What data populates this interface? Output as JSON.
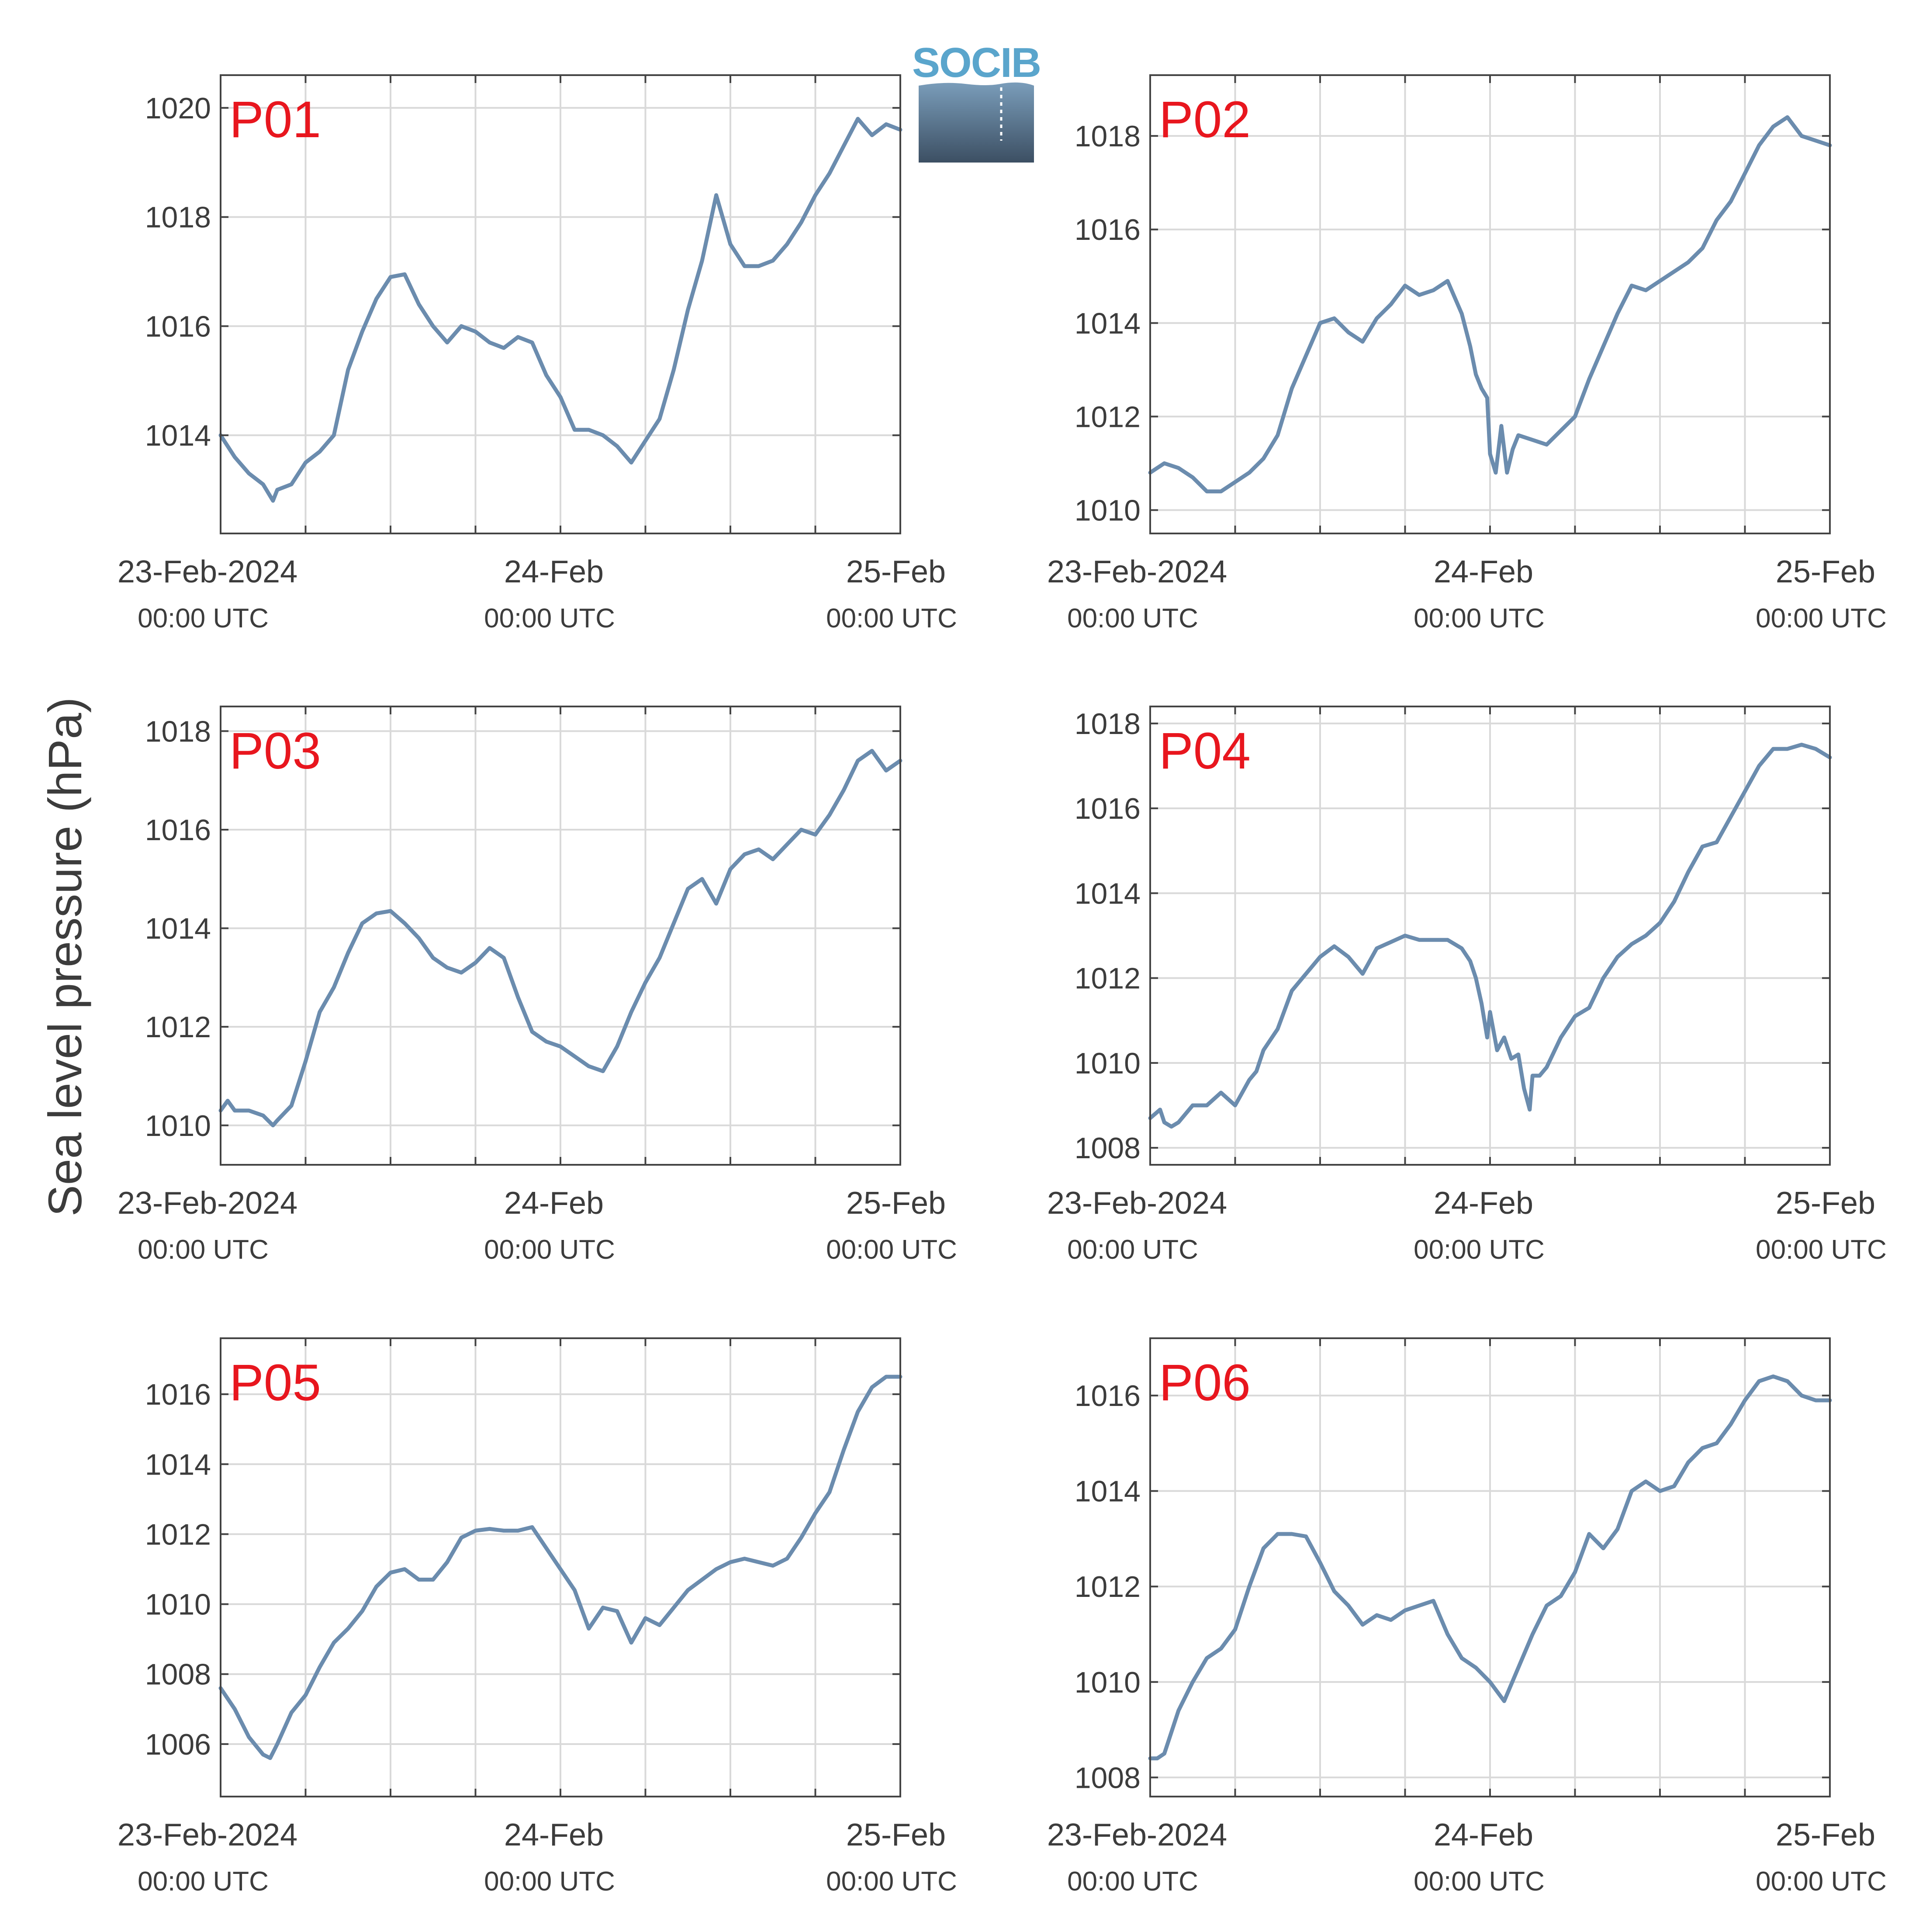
{
  "figure": {
    "ylabel": "Sea level pressure (hPa)",
    "logo_text": "SOCIB",
    "colors": {
      "line": "#6b8cae",
      "panel_label": "#e8161e",
      "grid": "#d9d9d9",
      "axis": "#444444",
      "text": "#3c3c3c",
      "logo_top": "#7a9dba",
      "logo_bottom": "#3c4f63",
      "logo_text": "#5aa5cc"
    }
  },
  "x_ticks": [
    {
      "x": 0,
      "line1": "23-Feb-2024",
      "line2": "00:00 UTC"
    },
    {
      "x": 24,
      "line1": "24-Feb",
      "line2": "00:00 UTC"
    },
    {
      "x": 48,
      "line1": "25-Feb",
      "line2": "00:00 UTC"
    }
  ],
  "chart_data": [
    {
      "type": "line",
      "title": "P01",
      "x_unit": "hours since 23-Feb-2024 00:00 UTC",
      "xlim": [
        0,
        48
      ],
      "ylim": [
        1012.2,
        1020.6
      ],
      "yticks": [
        1014,
        1016,
        1018,
        1020
      ],
      "x": [
        0,
        1,
        2,
        3,
        3.7,
        4,
        5,
        6,
        7,
        8,
        9,
        10,
        11,
        12,
        13,
        14,
        15,
        16,
        17,
        18,
        19,
        20,
        21,
        22,
        23,
        24,
        25,
        26,
        27,
        28,
        29,
        30,
        31,
        32,
        33,
        34,
        35,
        36,
        37,
        38,
        39,
        40,
        41,
        42,
        43,
        44,
        45,
        46,
        47,
        48
      ],
      "y": [
        1014.0,
        1013.6,
        1013.3,
        1013.1,
        1012.8,
        1013.0,
        1013.1,
        1013.5,
        1013.7,
        1014.0,
        1015.2,
        1015.9,
        1016.5,
        1016.9,
        1016.95,
        1016.4,
        1016.0,
        1015.7,
        1016.0,
        1015.9,
        1015.7,
        1015.6,
        1015.8,
        1015.7,
        1015.1,
        1014.7,
        1014.1,
        1014.1,
        1014.0,
        1013.8,
        1013.5,
        1013.9,
        1014.3,
        1015.2,
        1016.3,
        1017.2,
        1018.4,
        1017.5,
        1017.1,
        1017.1,
        1017.2,
        1017.5,
        1017.9,
        1018.4,
        1018.8,
        1019.3,
        1019.8,
        1019.5,
        1019.7,
        1019.6
      ]
    },
    {
      "type": "line",
      "title": "P02",
      "x_unit": "hours since 23-Feb-2024 00:00 UTC",
      "xlim": [
        0,
        48
      ],
      "ylim": [
        1009.5,
        1019.3
      ],
      "yticks": [
        1010,
        1012,
        1014,
        1016,
        1018
      ],
      "x": [
        0,
        1,
        2,
        3,
        4,
        5,
        6,
        7,
        8,
        9,
        10,
        11,
        12,
        13,
        14,
        15,
        16,
        17,
        18,
        19,
        20,
        21,
        22,
        22.6,
        23,
        23.4,
        23.8,
        24,
        24.4,
        24.8,
        25.2,
        25.6,
        26,
        27,
        28,
        29,
        30,
        31,
        32,
        33,
        34,
        35,
        36,
        37,
        38,
        39,
        40,
        41,
        42,
        43,
        44,
        45,
        46,
        47,
        48
      ],
      "y": [
        1010.8,
        1011.0,
        1010.9,
        1010.7,
        1010.4,
        1010.4,
        1010.6,
        1010.8,
        1011.1,
        1011.6,
        1012.6,
        1013.3,
        1014.0,
        1014.1,
        1013.8,
        1013.6,
        1014.1,
        1014.4,
        1014.8,
        1014.6,
        1014.7,
        1014.9,
        1014.2,
        1013.5,
        1012.9,
        1012.6,
        1012.4,
        1011.2,
        1010.8,
        1011.8,
        1010.8,
        1011.3,
        1011.6,
        1011.5,
        1011.4,
        1011.7,
        1012.0,
        1012.8,
        1013.5,
        1014.2,
        1014.8,
        1014.7,
        1014.9,
        1015.1,
        1015.3,
        1015.6,
        1016.2,
        1016.6,
        1017.2,
        1017.8,
        1018.2,
        1018.4,
        1018.0,
        1017.9,
        1017.8
      ]
    },
    {
      "type": "line",
      "title": "P03",
      "x_unit": "hours since 23-Feb-2024 00:00 UTC",
      "xlim": [
        0,
        48
      ],
      "ylim": [
        1009.2,
        1018.5
      ],
      "yticks": [
        1010,
        1012,
        1014,
        1016,
        1018
      ],
      "x": [
        0,
        0.5,
        1,
        2,
        3,
        3.7,
        4,
        5,
        6,
        7,
        8,
        9,
        10,
        11,
        12,
        13,
        14,
        15,
        16,
        17,
        18,
        19,
        20,
        21,
        22,
        23,
        24,
        25,
        26,
        27,
        28,
        29,
        30,
        31,
        32,
        33,
        34,
        35,
        36,
        37,
        38,
        39,
        40,
        41,
        42,
        43,
        44,
        45,
        46,
        47,
        48
      ],
      "y": [
        1010.3,
        1010.5,
        1010.3,
        1010.3,
        1010.2,
        1010.0,
        1010.1,
        1010.4,
        1011.3,
        1012.3,
        1012.8,
        1013.5,
        1014.1,
        1014.3,
        1014.35,
        1014.1,
        1013.8,
        1013.4,
        1013.2,
        1013.1,
        1013.3,
        1013.6,
        1013.4,
        1012.6,
        1011.9,
        1011.7,
        1011.6,
        1011.4,
        1011.2,
        1011.1,
        1011.6,
        1012.3,
        1012.9,
        1013.4,
        1014.1,
        1014.8,
        1015.0,
        1014.5,
        1015.2,
        1015.5,
        1015.6,
        1015.4,
        1015.7,
        1016.0,
        1015.9,
        1016.3,
        1016.8,
        1017.4,
        1017.6,
        1017.2,
        1017.4
      ]
    },
    {
      "type": "line",
      "title": "P04",
      "x_unit": "hours since 23-Feb-2024 00:00 UTC",
      "xlim": [
        0,
        48
      ],
      "ylim": [
        1007.6,
        1018.4
      ],
      "yticks": [
        1008,
        1010,
        1012,
        1014,
        1016,
        1018
      ],
      "x": [
        0,
        0.7,
        1,
        1.5,
        2,
        3,
        4,
        5,
        6,
        7,
        7.5,
        8,
        9,
        10,
        11,
        12,
        13,
        14,
        15,
        16,
        17,
        18,
        19,
        20,
        21,
        22,
        22.6,
        23,
        23.4,
        23.8,
        24,
        24.5,
        25,
        25.5,
        26,
        26.4,
        26.8,
        27,
        27.5,
        28,
        29,
        30,
        31,
        32,
        33,
        34,
        35,
        36,
        37,
        38,
        39,
        40,
        41,
        42,
        43,
        44,
        45,
        46,
        47,
        48
      ],
      "y": [
        1008.7,
        1008.9,
        1008.6,
        1008.5,
        1008.6,
        1009.0,
        1009.0,
        1009.3,
        1009.0,
        1009.6,
        1009.8,
        1010.3,
        1010.8,
        1011.7,
        1012.1,
        1012.5,
        1012.75,
        1012.5,
        1012.1,
        1012.7,
        1012.85,
        1013.0,
        1012.9,
        1012.9,
        1012.9,
        1012.7,
        1012.4,
        1012.0,
        1011.4,
        1010.6,
        1011.2,
        1010.3,
        1010.6,
        1010.1,
        1010.2,
        1009.4,
        1008.9,
        1009.7,
        1009.7,
        1009.9,
        1010.6,
        1011.1,
        1011.3,
        1012.0,
        1012.5,
        1012.8,
        1013.0,
        1013.3,
        1013.8,
        1014.5,
        1015.1,
        1015.2,
        1015.8,
        1016.4,
        1017.0,
        1017.4,
        1017.4,
        1017.5,
        1017.4,
        1017.2
      ]
    },
    {
      "type": "line",
      "title": "P05",
      "x_unit": "hours since 23-Feb-2024 00:00 UTC",
      "xlim": [
        0,
        48
      ],
      "ylim": [
        1004.5,
        1017.6
      ],
      "yticks": [
        1006,
        1008,
        1010,
        1012,
        1014,
        1016
      ],
      "x": [
        0,
        1,
        2,
        3,
        3.5,
        4,
        5,
        6,
        7,
        8,
        9,
        10,
        11,
        12,
        13,
        14,
        15,
        16,
        17,
        18,
        19,
        20,
        21,
        22,
        23,
        24,
        25,
        26,
        27,
        28,
        29,
        30,
        31,
        32,
        33,
        34,
        35,
        36,
        37,
        38,
        39,
        40,
        41,
        42,
        43,
        44,
        45,
        46,
        47,
        48
      ],
      "y": [
        1007.6,
        1007.0,
        1006.2,
        1005.7,
        1005.6,
        1006.0,
        1006.9,
        1007.4,
        1008.2,
        1008.9,
        1009.3,
        1009.8,
        1010.5,
        1010.9,
        1011.0,
        1010.7,
        1010.7,
        1011.2,
        1011.9,
        1012.1,
        1012.15,
        1012.1,
        1012.1,
        1012.2,
        1011.6,
        1011.0,
        1010.4,
        1009.3,
        1009.9,
        1009.8,
        1008.9,
        1009.6,
        1009.4,
        1009.9,
        1010.4,
        1010.7,
        1011.0,
        1011.2,
        1011.3,
        1011.2,
        1011.1,
        1011.3,
        1011.9,
        1012.6,
        1013.2,
        1014.4,
        1015.5,
        1016.2,
        1016.5,
        1016.5
      ]
    },
    {
      "type": "line",
      "title": "P06",
      "x_unit": "hours since 23-Feb-2024 00:00 UTC",
      "xlim": [
        0,
        48
      ],
      "ylim": [
        1007.6,
        1017.2
      ],
      "yticks": [
        1008,
        1010,
        1012,
        1014,
        1016
      ],
      "x": [
        0,
        0.5,
        1,
        2,
        3,
        4,
        5,
        6,
        7,
        8,
        9,
        10,
        11,
        12,
        13,
        14,
        15,
        16,
        17,
        18,
        19,
        20,
        21,
        22,
        23,
        24,
        25,
        26,
        27,
        28,
        29,
        30,
        31,
        32,
        33,
        34,
        35,
        36,
        37,
        38,
        39,
        40,
        41,
        42,
        43,
        44,
        45,
        46,
        47,
        48
      ],
      "y": [
        1008.4,
        1008.4,
        1008.5,
        1009.4,
        1010.0,
        1010.5,
        1010.7,
        1011.1,
        1012.0,
        1012.8,
        1013.1,
        1013.1,
        1013.05,
        1012.5,
        1011.9,
        1011.6,
        1011.2,
        1011.4,
        1011.3,
        1011.5,
        1011.6,
        1011.7,
        1011.0,
        1010.5,
        1010.3,
        1010.0,
        1009.6,
        1010.3,
        1011.0,
        1011.6,
        1011.8,
        1012.3,
        1013.1,
        1012.8,
        1013.2,
        1014.0,
        1014.2,
        1014.0,
        1014.1,
        1014.6,
        1014.9,
        1015.0,
        1015.4,
        1015.9,
        1016.3,
        1016.4,
        1016.3,
        1016.0,
        1015.9,
        1015.9
      ]
    }
  ]
}
